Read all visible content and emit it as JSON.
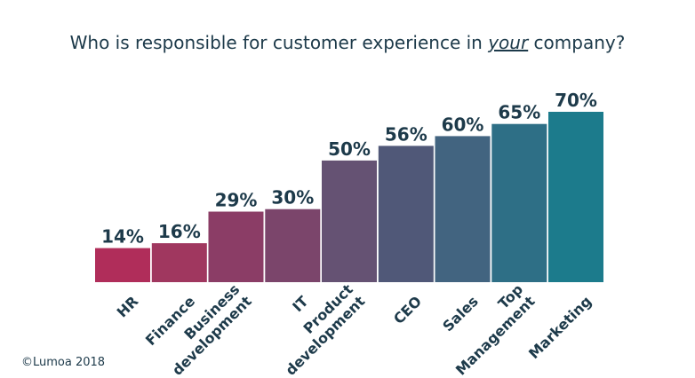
{
  "chart_data": {
    "type": "bar",
    "title": {
      "before": "Who is responsible for customer experience in ",
      "emphasis": "your",
      "after": " company?"
    },
    "categories": [
      [
        "HR"
      ],
      [
        "Finance"
      ],
      [
        "Business",
        "development"
      ],
      [
        "IT"
      ],
      [
        "Product",
        "development"
      ],
      [
        "CEO"
      ],
      [
        "Sales"
      ],
      [
        "Top",
        "Management"
      ],
      [
        "Marketing"
      ]
    ],
    "values": [
      14,
      16,
      29,
      30,
      50,
      56,
      60,
      65,
      70
    ],
    "value_labels": [
      "14%",
      "16%",
      "29%",
      "30%",
      "50%",
      "56%",
      "60%",
      "65%",
      "70%"
    ],
    "bar_colors": [
      "#b02d5a",
      "#a0375f",
      "#8b3d66",
      "#7b456b",
      "#655273",
      "#505878",
      "#426480",
      "#2e6f86",
      "#1c7b8c"
    ],
    "ylim": [
      0,
      70
    ],
    "grid": false,
    "legend": "none",
    "xlabel": "",
    "ylabel": ""
  },
  "footer": "©Lumoa 2018"
}
